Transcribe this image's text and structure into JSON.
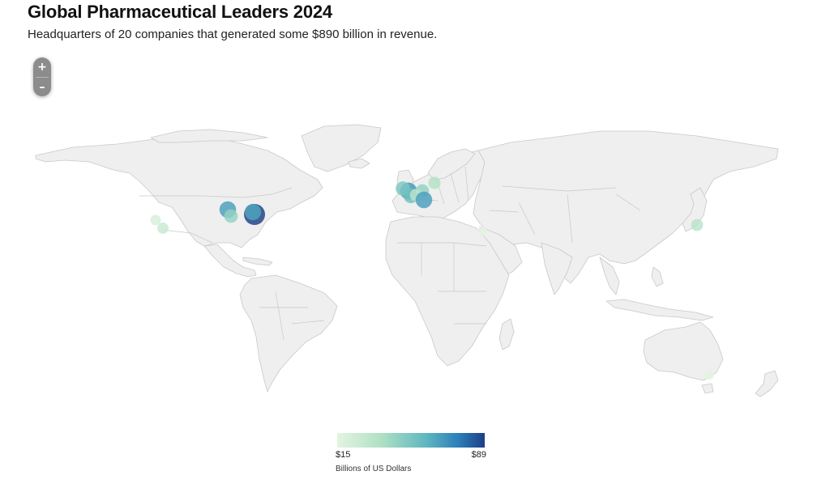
{
  "title": "Global Pharmaceutical Leaders 2024",
  "subtitle": "Headquarters of 20 companies that generated some $890 billion in revenue.",
  "zoom": {
    "in_label": "+",
    "out_label": "–"
  },
  "legend": {
    "min_label": "$15",
    "max_label": "$89",
    "unit_label": "Billions of US Dollars",
    "colors": [
      "#e4f4e2",
      "#b0e0c4",
      "#5fb7c0",
      "#2c7fb8",
      "#1c3f86"
    ]
  },
  "map_colors": {
    "land": "#efefef",
    "border": "#c8c8c8",
    "marker_min": "#cdeed5",
    "marker_max": "#2c68a8"
  },
  "markers": [
    {
      "region": "California (Bay Area)",
      "value": 20
    },
    {
      "region": "California (Southern)",
      "value": 25
    },
    {
      "region": "Illinois (Chicago)",
      "value": 60
    },
    {
      "region": "Midwest US",
      "value": 40
    },
    {
      "region": "New Jersey / New York",
      "value": 89
    },
    {
      "region": "New York",
      "value": 58
    },
    {
      "region": "United Kingdom (London)",
      "value": 62
    },
    {
      "region": "United Kingdom",
      "value": 45
    },
    {
      "region": "France (Paris)",
      "value": 48
    },
    {
      "region": "Denmark",
      "value": 32
    },
    {
      "region": "Germany (Frankfurt)",
      "value": 40
    },
    {
      "region": "Germany (Rhine)",
      "value": 30
    },
    {
      "region": "Switzerland (Basel)",
      "value": 60
    },
    {
      "region": "Israel",
      "value": 15
    },
    {
      "region": "Japan (Tokyo)",
      "value": 30
    },
    {
      "region": "Australia (Melbourne)",
      "value": 15
    }
  ]
}
